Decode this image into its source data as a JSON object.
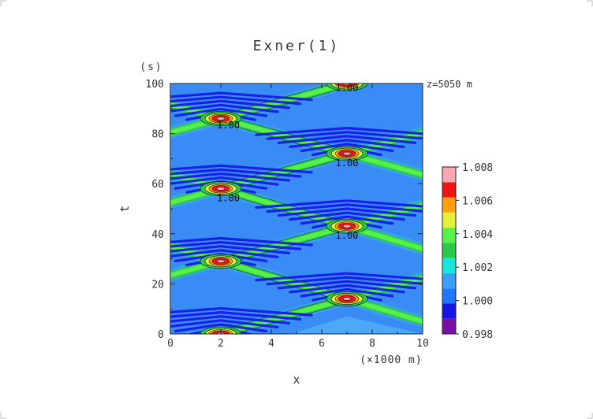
{
  "chart_data": {
    "type": "heatmap",
    "title": "Exner(1)",
    "annotation": "z=5050 m",
    "xlabel": "x",
    "xunit": "(×1000 m)",
    "ylabel": "t",
    "yunit": "(s)",
    "xlim": [
      0,
      10
    ],
    "ylim": [
      0,
      100
    ],
    "x_ticks": [
      "0",
      "2",
      "4",
      "6",
      "8",
      "10"
    ],
    "y_ticks": [
      "0",
      "20",
      "40",
      "60",
      "80",
      "100"
    ],
    "colorbar": {
      "levels": [
        0.998,
        0.999,
        1.0,
        1.001,
        1.002,
        1.003,
        1.004,
        1.005,
        1.006,
        1.007,
        1.008
      ],
      "labels": [
        "0.998",
        "1.000",
        "1.002",
        "1.004",
        "1.006",
        "1.008"
      ],
      "colors": [
        "#7a0fa8",
        "#1515e6",
        "#1f78ff",
        "#3aa0f5",
        "#18e6d8",
        "#28c84a",
        "#58f04a",
        "#e6f03a",
        "#ffa010",
        "#f01414",
        "#ffa6b4"
      ]
    },
    "peaks": [
      {
        "x": 2,
        "t": 0,
        "value": 1.008
      },
      {
        "x": 7,
        "t": 14,
        "value": 1.008
      },
      {
        "x": 2,
        "t": 29,
        "value": 1.008
      },
      {
        "x": 7,
        "t": 43,
        "value": 1.008
      },
      {
        "x": 2,
        "t": 58,
        "value": 1.008
      },
      {
        "x": 7,
        "t": 72,
        "value": 1.008
      },
      {
        "x": 2,
        "t": 86,
        "value": 1.008
      },
      {
        "x": 7,
        "t": 100,
        "value": 1.008
      }
    ],
    "contour_labels": [
      {
        "x": 7,
        "t": 97,
        "text": "1.00"
      },
      {
        "x": 2.3,
        "t": 82,
        "text": "1.00"
      },
      {
        "x": 7,
        "t": 67,
        "text": "1.00"
      },
      {
        "x": 2.3,
        "t": 53,
        "text": "1.00"
      },
      {
        "x": 7,
        "t": 38,
        "text": "1.00"
      }
    ]
  }
}
